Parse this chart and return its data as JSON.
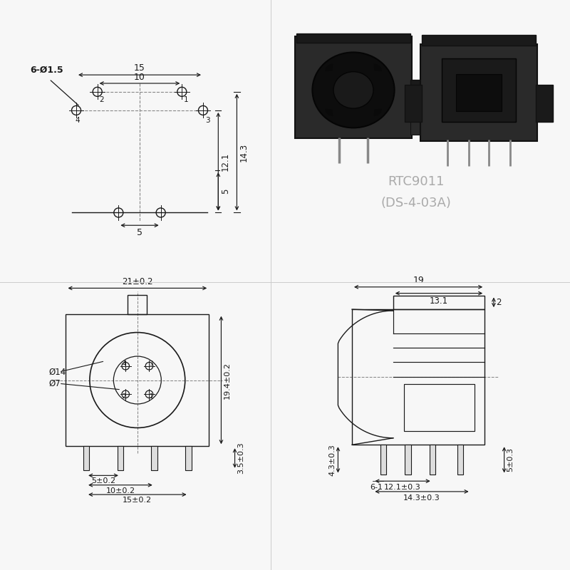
{
  "bg_color": "#f7f7f7",
  "line_color": "#1a1a1a",
  "dim_color": "#1a1a1a",
  "dashed_color": "#888888",
  "title1": "RTC9011",
  "title2": "(DS-4-03A)",
  "title_color": "#aaaaaa",
  "front_view": {
    "dim_21_label": "21±0.2",
    "dim_194_label": "19.4±0.2",
    "dim_5a_label": "5±0.2",
    "dim_10a_label": "10±0.2",
    "dim_15a_label": "15±0.2",
    "dim_35_label": "3.5±0.3",
    "phi14_label": "Ø14",
    "phi7_label": "Ø7"
  },
  "side_view": {
    "dim_19_label": "19",
    "dim_131_label": "13.1",
    "dim_2_label": "2",
    "dim_43_label": "4.3±0.3",
    "dim_61_label": "6-1",
    "dim_121_label": "12.1±0.3",
    "dim_143_label": "14.3±0.3",
    "dim_5r_label": "5±0.3"
  }
}
